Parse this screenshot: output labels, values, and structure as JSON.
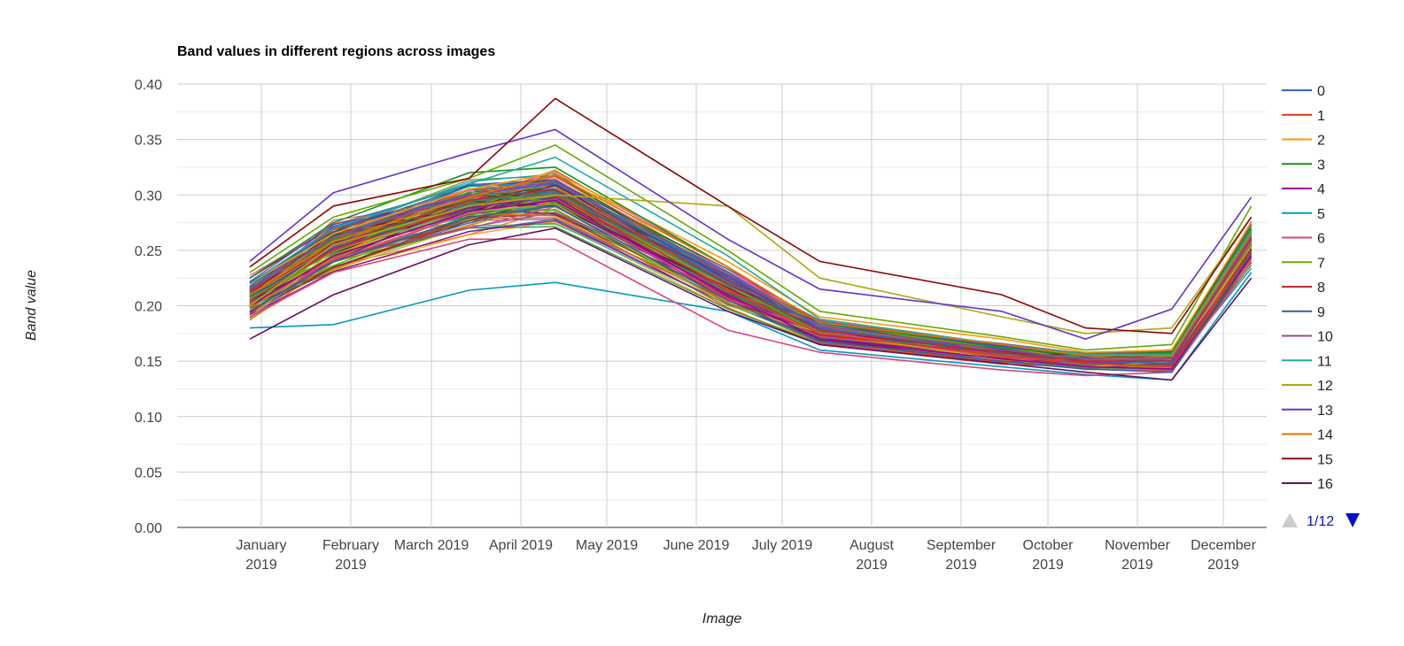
{
  "chart_data": {
    "type": "line",
    "title": "Band values in different regions across images",
    "xlabel": "Image",
    "ylabel": "Band value",
    "ylim": [
      0,
      0.4
    ],
    "y_ticks": [
      "0.00",
      "0.05",
      "0.10",
      "0.15",
      "0.20",
      "0.25",
      "0.30",
      "0.35",
      "0.40"
    ],
    "x_ticks": [
      [
        "January",
        "2019"
      ],
      [
        "February",
        "2019"
      ],
      [
        "March 2019"
      ],
      [
        "April 2019"
      ],
      [
        "May 2019"
      ],
      [
        "June 2019"
      ],
      [
        "July 2019"
      ],
      [
        "August",
        "2019"
      ],
      [
        "September",
        "2019"
      ],
      [
        "October",
        "2019"
      ],
      [
        "November",
        "2019"
      ],
      [
        "December",
        "2019"
      ]
    ],
    "x": [
      "2018-12-28",
      "2019-01-26",
      "2019-03-14",
      "2019-04-13",
      "2019-06-12",
      "2019-07-14",
      "2019-09-15",
      "2019-10-14",
      "2019-11-13",
      "2019-12-11"
    ],
    "grid": true,
    "legend_position": "right",
    "series": [
      {
        "name": "0",
        "color": "#3366cc",
        "values": [
          0.215,
          0.27,
          0.3,
          0.31,
          0.23,
          0.18,
          0.158,
          0.15,
          0.148,
          0.265
        ]
      },
      {
        "name": "1",
        "color": "#dc3912",
        "values": [
          0.205,
          0.25,
          0.29,
          0.3,
          0.215,
          0.175,
          0.155,
          0.148,
          0.145,
          0.25
        ]
      },
      {
        "name": "2",
        "color": "#ff9900",
        "values": [
          0.22,
          0.265,
          0.305,
          0.32,
          0.24,
          0.19,
          0.17,
          0.158,
          0.16,
          0.275
        ]
      },
      {
        "name": "3",
        "color": "#109618",
        "values": [
          0.225,
          0.275,
          0.32,
          0.325,
          0.235,
          0.185,
          0.162,
          0.155,
          0.158,
          0.27
        ]
      },
      {
        "name": "4",
        "color": "#990099",
        "values": [
          0.2,
          0.245,
          0.285,
          0.295,
          0.21,
          0.17,
          0.152,
          0.145,
          0.143,
          0.245
        ]
      },
      {
        "name": "5",
        "color": "#0099c6",
        "values": [
          0.18,
          0.183,
          0.214,
          0.221,
          0.195,
          0.16,
          0.145,
          0.138,
          0.133,
          0.23
        ]
      },
      {
        "name": "6",
        "color": "#dd4477",
        "values": [
          0.19,
          0.23,
          0.26,
          0.26,
          0.178,
          0.158,
          0.142,
          0.137,
          0.14,
          0.24
        ]
      },
      {
        "name": "7",
        "color": "#66aa00",
        "values": [
          0.23,
          0.28,
          0.315,
          0.345,
          0.25,
          0.195,
          0.172,
          0.16,
          0.165,
          0.29
        ]
      },
      {
        "name": "8",
        "color": "#b82e2e",
        "values": [
          0.21,
          0.255,
          0.295,
          0.305,
          0.22,
          0.178,
          0.158,
          0.15,
          0.15,
          0.26
        ]
      },
      {
        "name": "9",
        "color": "#316395",
        "values": [
          0.195,
          0.24,
          0.28,
          0.29,
          0.205,
          0.168,
          0.15,
          0.143,
          0.14,
          0.248
        ]
      },
      {
        "name": "10",
        "color": "#994499",
        "values": [
          0.215,
          0.262,
          0.3,
          0.312,
          0.228,
          0.182,
          0.16,
          0.152,
          0.152,
          0.262
        ]
      },
      {
        "name": "11",
        "color": "#22aa99",
        "values": [
          0.22,
          0.27,
          0.31,
          0.334,
          0.245,
          0.188,
          0.165,
          0.156,
          0.156,
          0.268
        ]
      },
      {
        "name": "12",
        "color": "#aaaa11",
        "values": [
          0.2,
          0.255,
          0.29,
          0.3,
          0.29,
          0.225,
          0.19,
          0.175,
          0.18,
          0.28
        ]
      },
      {
        "name": "13",
        "color": "#6633cc",
        "values": [
          0.24,
          0.302,
          0.338,
          0.359,
          0.26,
          0.215,
          0.195,
          0.17,
          0.197,
          0.298
        ]
      },
      {
        "name": "14",
        "color": "#e67300",
        "values": [
          0.21,
          0.258,
          0.298,
          0.318,
          0.235,
          0.185,
          0.165,
          0.155,
          0.155,
          0.265
        ]
      },
      {
        "name": "15",
        "color": "#8b0707",
        "values": [
          0.235,
          0.29,
          0.315,
          0.387,
          0.29,
          0.24,
          0.21,
          0.18,
          0.175,
          0.28
        ]
      },
      {
        "name": "16",
        "color": "#651067",
        "values": [
          0.17,
          0.21,
          0.255,
          0.27,
          0.195,
          0.165,
          0.148,
          0.14,
          0.133,
          0.225
        ]
      }
    ],
    "background_series_count": 120
  },
  "pager": {
    "label": "1/12"
  }
}
